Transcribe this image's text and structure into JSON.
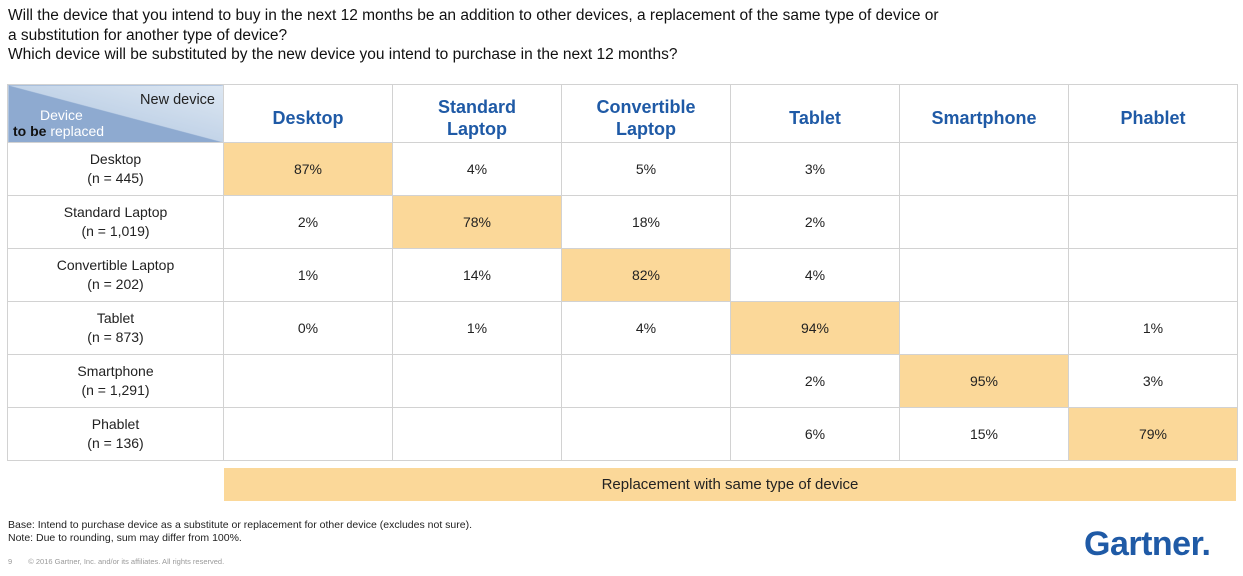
{
  "question": {
    "line1": "Will the device that you intend to buy in the next 12 months be an addition to other devices, a replacement of the same type of device or",
    "line2": "a substitution for another type of device?",
    "line3": "Which device will be substituted by the new device you intend to purchase in the next 12 months?"
  },
  "corner": {
    "top_label": "New device",
    "device_label": "Device",
    "to_be": "to be",
    "replaced": "replaced"
  },
  "chart_data": {
    "type": "table",
    "columns": [
      {
        "line1": "Desktop",
        "line2": ""
      },
      {
        "line1": "Standard",
        "line2": "Laptop"
      },
      {
        "line1": "Convertible",
        "line2": "Laptop"
      },
      {
        "line1": "Tablet",
        "line2": ""
      },
      {
        "line1": "Smartphone",
        "line2": ""
      },
      {
        "line1": "Phablet",
        "line2": ""
      }
    ],
    "rows": [
      {
        "name": "Desktop",
        "n": "(n = 445)",
        "cells": [
          "87%",
          "4%",
          "5%",
          "3%",
          "",
          ""
        ],
        "highlight": 0
      },
      {
        "name": "Standard Laptop",
        "n": "(n = 1,019)",
        "cells": [
          "2%",
          "78%",
          "18%",
          "2%",
          "",
          ""
        ],
        "highlight": 1
      },
      {
        "name": "Convertible Laptop",
        "n": "(n = 202)",
        "cells": [
          "1%",
          "14%",
          "82%",
          "4%",
          "",
          ""
        ],
        "highlight": 2
      },
      {
        "name": "Tablet",
        "n": "(n = 873)",
        "cells": [
          "0%",
          "1%",
          "4%",
          "94%",
          "",
          "1%"
        ],
        "highlight": 3
      },
      {
        "name": "Smartphone",
        "n": "(n = 1,291)",
        "cells": [
          "",
          "",
          "",
          "2%",
          "95%",
          "3%"
        ],
        "highlight": 4
      },
      {
        "name": "Phablet",
        "n": "(n = 136)",
        "cells": [
          "",
          "",
          "",
          "6%",
          "15%",
          "79%"
        ],
        "highlight": 5
      }
    ]
  },
  "legend": "Replacement with same type of device",
  "notes": {
    "base": "Base: Intend to purchase device as a substitute or replacement for other device (excludes not sure).",
    "rounding": "Note: Due to rounding, sum may differ from 100%."
  },
  "footer": {
    "page": "9",
    "copyright": "© 2016 Gartner, Inc. and/or its affiliates. All rights reserved."
  },
  "logo": "Gartner",
  "colors": {
    "highlight": "#fbd899",
    "header_blue": "#1f5aa6",
    "corner_dark": "#8eaad0",
    "corner_light": "#dde7f2"
  }
}
